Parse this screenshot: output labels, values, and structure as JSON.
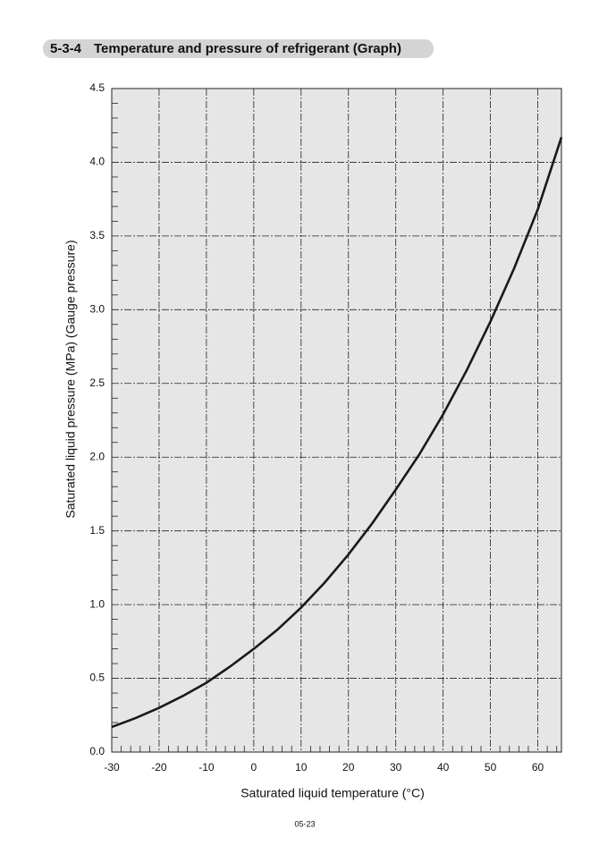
{
  "section": {
    "number": "5-3-4",
    "title": "Temperature and pressure of refrigerant (Graph)"
  },
  "footer": "05-23",
  "chart_data": {
    "type": "line",
    "x_label": "Saturated liquid temperature (°C)",
    "y_label": "Saturated liquid pressure (MPa) (Gauge pressure)",
    "x": [
      -30,
      -25,
      -20,
      -15,
      -10,
      -5,
      0,
      5,
      10,
      15,
      20,
      25,
      30,
      35,
      40,
      45,
      50,
      55,
      60,
      65
    ],
    "series": [
      {
        "color": "#1a1a1a",
        "values": [
          0.17,
          0.23,
          0.3,
          0.38,
          0.47,
          0.58,
          0.7,
          0.83,
          0.98,
          1.15,
          1.34,
          1.55,
          1.78,
          2.02,
          2.29,
          2.59,
          2.92,
          3.28,
          3.68,
          4.17
        ]
      }
    ],
    "xlim": [
      -30,
      65
    ],
    "ylim": [
      0,
      4.5
    ],
    "xticks": [
      -30,
      -20,
      -10,
      0,
      10,
      20,
      30,
      40,
      50,
      60
    ],
    "yticks": [
      {
        "value": 0,
        "label": "0.0"
      },
      0.5,
      {
        "value": 1,
        "label": "1.0"
      },
      1.5,
      {
        "value": 2,
        "label": "2.0"
      },
      2.5,
      {
        "value": 3,
        "label": "3.0"
      },
      3.5,
      {
        "value": 4,
        "label": "4.0"
      },
      4.5
    ],
    "x_minor_ticks": [
      -28,
      -26,
      -24,
      -22,
      -18,
      -16,
      -14,
      -12,
      -8,
      -6,
      -4,
      -2,
      2,
      4,
      6,
      8,
      12,
      14,
      16,
      18,
      22,
      24,
      26,
      28,
      32,
      34,
      36,
      38,
      42,
      44,
      46,
      48,
      52,
      54,
      56,
      58,
      62,
      64
    ],
    "y_minor_ticks": [
      0.1,
      0.2,
      0.3,
      0.4,
      0.6,
      0.7,
      0.8,
      0.9,
      1.1,
      1.2,
      1.3,
      1.4,
      1.6,
      1.7,
      1.8,
      1.9,
      2.1,
      2.2,
      2.3,
      2.4,
      2.6,
      2.7,
      2.8,
      2.9,
      3.1,
      3.2,
      3.3,
      3.4,
      3.6,
      3.7,
      3.8,
      3.9,
      4.1,
      4.2,
      4.3,
      4.4
    ],
    "grid": true,
    "background": "#e6e6e6"
  }
}
